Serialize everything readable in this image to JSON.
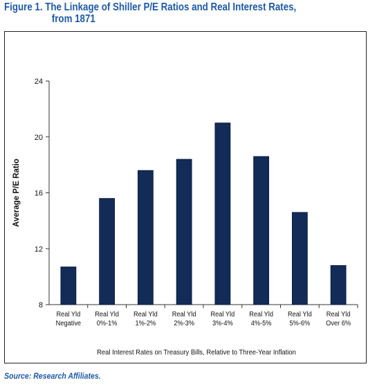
{
  "figure": {
    "title_line1": "Figure 1. The Linkage of Shiller P/E Ratios and Real Interest Rates,",
    "title_line2": "from 1871",
    "source": "Source: Research Affiliates."
  },
  "colors": {
    "bar": "#132b57",
    "title": "#1e5aa8",
    "axis": "#333333"
  },
  "chart_data": {
    "type": "bar",
    "title": "",
    "xlabel": "Real Interest Rates on Treasury Bills, Relative to Three-Year Inflation",
    "ylabel": "Average P/E Ratio",
    "ylim": [
      8,
      24
    ],
    "yticks": [
      8,
      12,
      16,
      20,
      24
    ],
    "grid": false,
    "categories": [
      [
        "Real Yld",
        "Negative"
      ],
      [
        "Real Yld",
        "0%-1%"
      ],
      [
        "Real Yld",
        "1%-2%"
      ],
      [
        "Real Yld",
        "2%-3%"
      ],
      [
        "Real Yld",
        "3%-4%"
      ],
      [
        "Real Yld",
        "4%-5%"
      ],
      [
        "Real Yld",
        "5%-6%"
      ],
      [
        "Real Yld",
        "Over 6%"
      ]
    ],
    "values": [
      10.7,
      15.6,
      17.6,
      18.4,
      21.0,
      18.6,
      14.6,
      10.8
    ]
  }
}
